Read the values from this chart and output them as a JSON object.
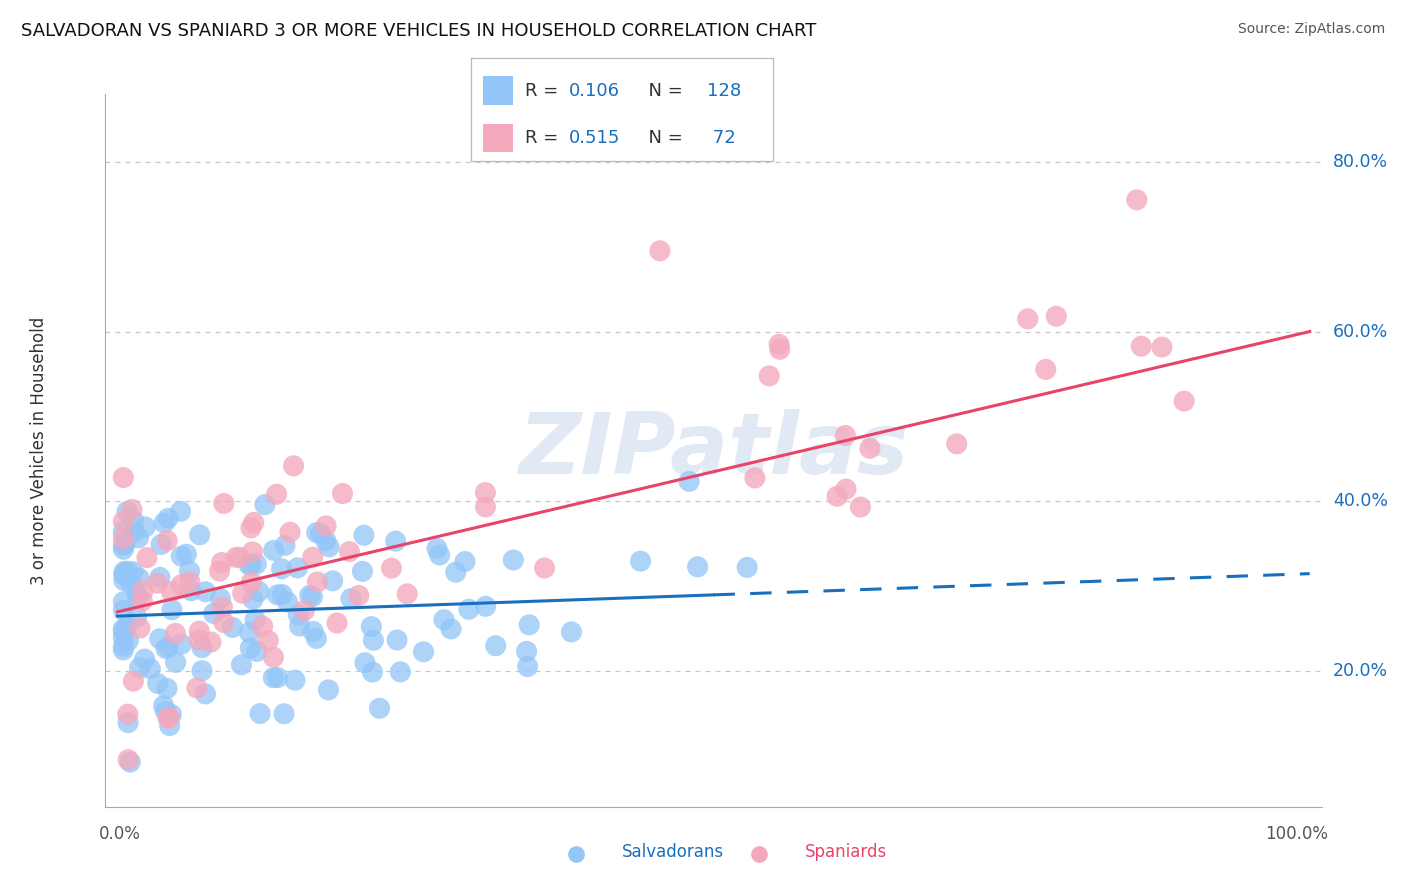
{
  "title": "SALVADORAN VS SPANIARD 3 OR MORE VEHICLES IN HOUSEHOLD CORRELATION CHART",
  "source": "Source: ZipAtlas.com",
  "ylabel": "3 or more Vehicles in Household",
  "y_tick_labels": [
    "20.0%",
    "40.0%",
    "60.0%",
    "80.0%"
  ],
  "y_tick_values": [
    0.2,
    0.4,
    0.6,
    0.8
  ],
  "xlim": [
    -0.01,
    1.01
  ],
  "ylim": [
    0.04,
    0.88
  ],
  "salvadoran_color": "#92c5f8",
  "spaniard_color": "#f4a8bc",
  "salvadoran_line_color": "#1a6fbd",
  "spaniard_line_color": "#e8446a",
  "R_salvadoran": 0.106,
  "N_salvadoran": 128,
  "R_spaniard": 0.515,
  "N_spaniard": 72,
  "legend_labels": [
    "Salvadorans",
    "Spaniards"
  ],
  "watermark": "ZIPatlas",
  "background_color": "#ffffff",
  "grid_color": "#c8c8c8",
  "title_fontsize": 13,
  "blue_stat_color": "#1a6fbd",
  "black_text": "#333333",
  "sal_line_y0": 0.265,
  "sal_line_y1": 0.315,
  "spa_line_y0": 0.27,
  "spa_line_y1": 0.6
}
